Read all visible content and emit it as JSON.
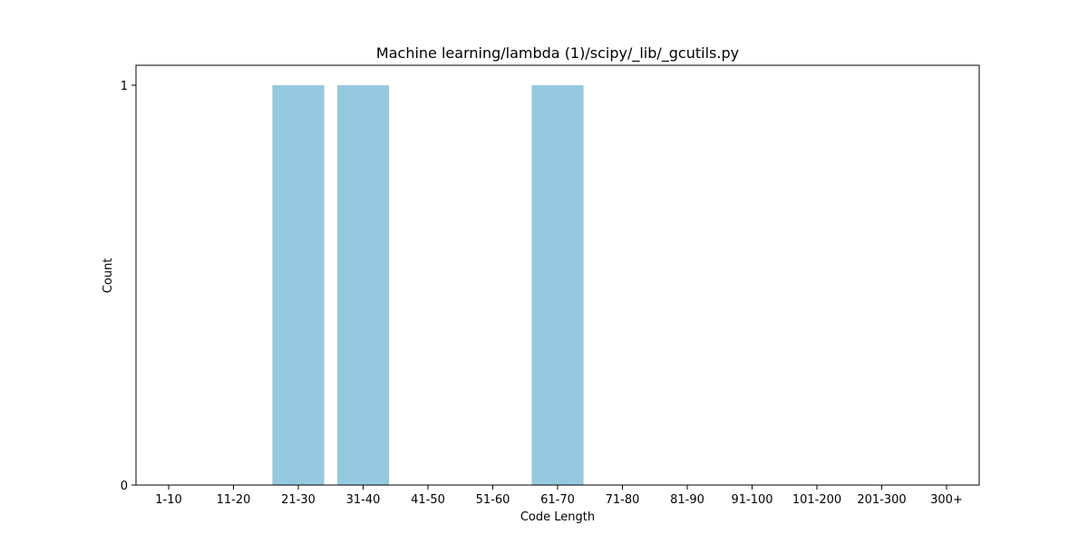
{
  "chart_data": {
    "type": "bar",
    "title": "Machine learning/lambda (1)/scipy/_lib/_gcutils.py",
    "xlabel": "Code Length",
    "ylabel": "Count",
    "categories": [
      "1-10",
      "11-20",
      "21-30",
      "31-40",
      "41-50",
      "51-60",
      "61-70",
      "71-80",
      "81-90",
      "91-100",
      "101-200",
      "201-300",
      "300+"
    ],
    "values": [
      0,
      0,
      1,
      1,
      0,
      0,
      1,
      0,
      0,
      0,
      0,
      0,
      0
    ],
    "ylim": [
      0,
      1
    ],
    "yticks": [
      0,
      1
    ],
    "grid": false,
    "bar_color": "#96c9de"
  }
}
